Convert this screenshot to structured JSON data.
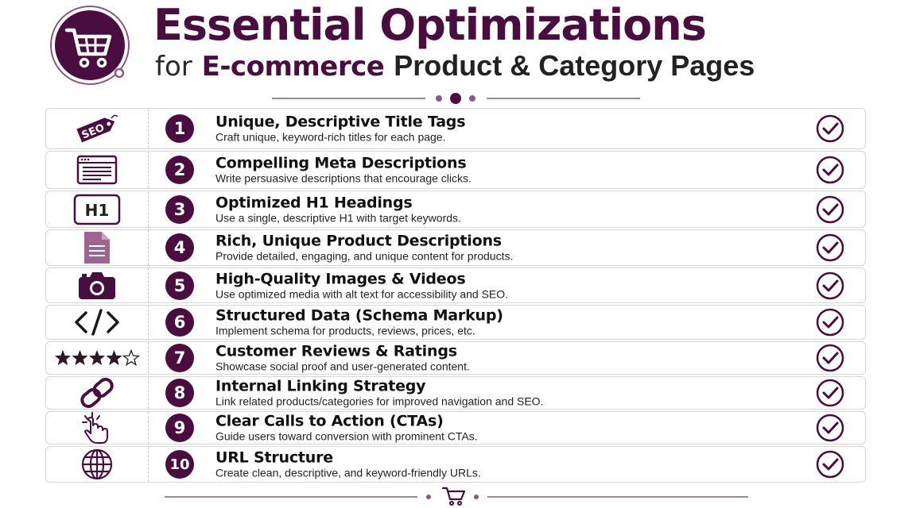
{
  "header": {
    "title_line1": "Essential Optimizations",
    "title_for": "for",
    "title_ecommerce": "E-commerce",
    "title_rest": "Product & Category Pages",
    "logo_icon": "shopping-cart-icon"
  },
  "colors": {
    "accent": "#4a0d40",
    "divider": "#8a5a7e",
    "row_border": "#d9d4d8"
  },
  "items": [
    {
      "number": "1",
      "icon": "seo-tag-icon",
      "heading": "Unique, Descriptive Title Tags",
      "description": "Craft unique, keyword-rich titles for each page.",
      "icon_text": "SEO"
    },
    {
      "number": "2",
      "icon": "browser-window-icon",
      "heading": "Compelling Meta Descriptions",
      "description": "Write persuasive descriptions that encourage clicks."
    },
    {
      "number": "3",
      "icon": "h1-icon",
      "heading": "Optimized H1 Headings",
      "description": "Use a single, descriptive H1 with target keywords.",
      "icon_text": "H1"
    },
    {
      "number": "4",
      "icon": "document-icon",
      "heading": "Rich, Unique Product Descriptions",
      "description": "Provide detailed, engaging, and unique content for products."
    },
    {
      "number": "5",
      "icon": "camera-icon",
      "heading": "High-Quality Images & Videos",
      "description": "Use optimized media with alt text for accessibility and SEO."
    },
    {
      "number": "6",
      "icon": "code-icon",
      "heading": "Structured Data (Schema Markup)",
      "description": "Implement schema for products, reviews, prices, etc.",
      "icon_text": "</>"
    },
    {
      "number": "7",
      "icon": "star-rating-icon",
      "heading": "Customer Reviews & Ratings",
      "description": "Showcase social proof and user-generated content.",
      "rating": 4,
      "rating_max": 5
    },
    {
      "number": "8",
      "icon": "link-icon",
      "heading": "Internal Linking Strategy",
      "description": "Link related products/categories for improved navigation and SEO."
    },
    {
      "number": "9",
      "icon": "pointer-click-icon",
      "heading": "Clear Calls to Action (CTAs)",
      "description": "Guide users toward conversion with prominent CTAs."
    },
    {
      "number": "10",
      "icon": "globe-icon",
      "heading": "URL Structure",
      "description": "Create clean, descriptive, and keyword-friendly URLs."
    }
  ],
  "footer": {
    "icon": "shopping-cart-icon"
  }
}
